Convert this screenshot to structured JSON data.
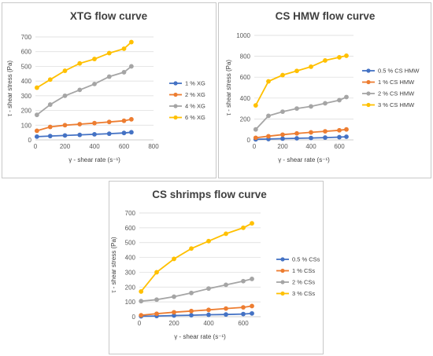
{
  "chart_data": [
    {
      "type": "line",
      "title": "XTG  flow curve",
      "xlabel": "γ - shear rate (s⁻¹)",
      "ylabel": "τ - shear stress (Pa)",
      "xlim": [
        0,
        800
      ],
      "ylim": [
        0,
        700
      ],
      "xticks": [
        "0",
        "200",
        "400",
        "600",
        "800"
      ],
      "yticks": [
        "0",
        "100",
        "200",
        "300",
        "400",
        "500",
        "600",
        "700"
      ],
      "grid": true,
      "legend_position": "right",
      "x": [
        10,
        100,
        200,
        300,
        400,
        500,
        600,
        650
      ],
      "series": [
        {
          "name": "1 % XG",
          "color": "#4472C4",
          "values": [
            22,
            26,
            30,
            34,
            38,
            42,
            47,
            52
          ]
        },
        {
          "name": "2 % XG",
          "color": "#ED7D31",
          "values": [
            62,
            88,
            100,
            107,
            114,
            122,
            130,
            140
          ]
        },
        {
          "name": "4 % XG",
          "color": "#A5A5A5",
          "values": [
            170,
            240,
            300,
            340,
            380,
            430,
            460,
            500
          ]
        },
        {
          "name": "6 % XG",
          "color": "#FFC000",
          "values": [
            355,
            410,
            470,
            520,
            550,
            590,
            620,
            665
          ]
        }
      ]
    },
    {
      "type": "line",
      "title": "CS HMW flow curve",
      "xlabel": "γ - shear rate (s⁻¹)",
      "ylabel": "τ - shear stress (Pa)",
      "xlim": [
        0,
        700
      ],
      "ylim": [
        0,
        1000
      ],
      "xticks": [
        "0",
        "200",
        "400",
        "600"
      ],
      "yticks": [
        "0",
        "200",
        "400",
        "600",
        "800",
        "1000"
      ],
      "grid": true,
      "legend_position": "right",
      "x": [
        10,
        100,
        200,
        300,
        400,
        500,
        600,
        650
      ],
      "series": [
        {
          "name": "0.5 % CS HMW",
          "color": "#4472C4",
          "values": [
            5,
            8,
            12,
            15,
            18,
            22,
            26,
            30
          ]
        },
        {
          "name": "1 % CS HMW",
          "color": "#ED7D31",
          "values": [
            20,
            35,
            50,
            62,
            72,
            82,
            92,
            100
          ]
        },
        {
          "name": "2 % CS HMW",
          "color": "#A5A5A5",
          "values": [
            100,
            230,
            270,
            300,
            320,
            350,
            380,
            410
          ]
        },
        {
          "name": "3 % CS HMW",
          "color": "#FFC000",
          "values": [
            330,
            560,
            620,
            660,
            700,
            760,
            790,
            805
          ]
        }
      ]
    },
    {
      "type": "line",
      "title": "CS shrimps flow curve",
      "xlabel": "γ - shear rate (s⁻¹)",
      "ylabel": "τ - shear stress (Pa)",
      "xlim": [
        0,
        700
      ],
      "ylim": [
        0,
        700
      ],
      "xticks": [
        "0",
        "200",
        "400",
        "600"
      ],
      "yticks": [
        "0",
        "100",
        "200",
        "300",
        "400",
        "500",
        "600",
        "700"
      ],
      "grid": true,
      "legend_position": "right",
      "x": [
        10,
        100,
        200,
        300,
        400,
        500,
        600,
        650
      ],
      "series": [
        {
          "name": "0.5 % CSs",
          "color": "#4472C4",
          "values": [
            3,
            5,
            8,
            10,
            13,
            15,
            18,
            22
          ]
        },
        {
          "name": "1 % CSs",
          "color": "#ED7D31",
          "values": [
            10,
            20,
            30,
            38,
            46,
            55,
            63,
            72
          ]
        },
        {
          "name": "2 % CSs",
          "color": "#A5A5A5",
          "values": [
            105,
            115,
            135,
            160,
            190,
            215,
            240,
            255
          ]
        },
        {
          "name": "3 % CSs",
          "color": "#FFC000",
          "values": [
            170,
            300,
            390,
            460,
            510,
            560,
            600,
            630
          ]
        }
      ]
    }
  ]
}
